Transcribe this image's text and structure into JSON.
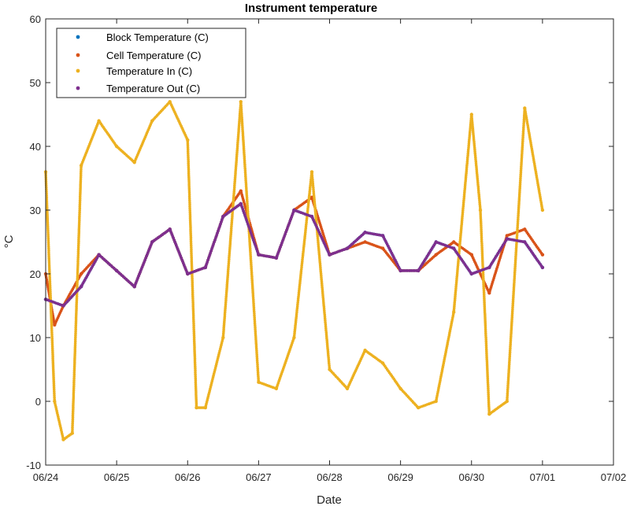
{
  "chart_data": {
    "type": "scatter",
    "title": "Instrument temperature",
    "xlabel": "Date",
    "ylabel": "°C",
    "xlim": [
      "06/24",
      "07/02"
    ],
    "ylim": [
      -10,
      60
    ],
    "x_tick_labels": [
      "06/24",
      "06/25",
      "06/26",
      "06/27",
      "06/28",
      "06/29",
      "06/30",
      "07/01",
      "07/02"
    ],
    "y_ticks": [
      -10,
      0,
      10,
      20,
      30,
      40,
      50,
      60
    ],
    "legend_position": "top-left",
    "grid": false,
    "series": [
      {
        "name": "Block Temperature (C)",
        "color": "#0072BD",
        "points": [
          [
            "06/24 00:00",
            16
          ],
          [
            "06/24 06:00",
            15
          ],
          [
            "06/24 12:00",
            18
          ],
          [
            "06/24 18:00",
            23
          ],
          [
            "06/25 00:00",
            20.5
          ],
          [
            "06/25 06:00",
            18
          ],
          [
            "06/25 12:00",
            25
          ],
          [
            "06/25 18:00",
            27
          ],
          [
            "06/26 00:00",
            20
          ],
          [
            "06/26 06:00",
            21
          ],
          [
            "06/26 12:00",
            29
          ],
          [
            "06/26 18:00",
            31
          ],
          [
            "06/27 00:00",
            23
          ],
          [
            "06/27 06:00",
            22.5
          ],
          [
            "06/27 12:00",
            30
          ],
          [
            "06/27 18:00",
            29
          ],
          [
            "06/28 00:00",
            23
          ],
          [
            "06/28 06:00",
            24
          ],
          [
            "06/28 12:00",
            26.5
          ],
          [
            "06/28 18:00",
            26
          ],
          [
            "06/29 00:00",
            20.5
          ],
          [
            "06/29 06:00",
            20.5
          ],
          [
            "06/29 12:00",
            25
          ],
          [
            "06/29 18:00",
            24
          ],
          [
            "06/30 00:00",
            20
          ],
          [
            "06/30 06:00",
            21
          ],
          [
            "06/30 12:00",
            25.5
          ],
          [
            "06/30 18:00",
            25
          ],
          [
            "07/01 00:00",
            21
          ]
        ]
      },
      {
        "name": "Cell Temperature (C)",
        "color": "#D95319",
        "points": [
          [
            "06/24 00:00",
            20
          ],
          [
            "06/24 03:00",
            12
          ],
          [
            "06/24 06:00",
            15
          ],
          [
            "06/24 12:00",
            20
          ],
          [
            "06/24 18:00",
            23
          ],
          [
            "06/25 00:00",
            20.5
          ],
          [
            "06/25 06:00",
            18
          ],
          [
            "06/25 12:00",
            25
          ],
          [
            "06/25 18:00",
            27
          ],
          [
            "06/26 00:00",
            20
          ],
          [
            "06/26 06:00",
            21
          ],
          [
            "06/26 12:00",
            29
          ],
          [
            "06/26 18:00",
            33
          ],
          [
            "06/27 00:00",
            23
          ],
          [
            "06/27 06:00",
            22.5
          ],
          [
            "06/27 12:00",
            30
          ],
          [
            "06/27 18:00",
            32
          ],
          [
            "06/28 00:00",
            23
          ],
          [
            "06/28 06:00",
            24
          ],
          [
            "06/28 12:00",
            25
          ],
          [
            "06/28 18:00",
            24
          ],
          [
            "06/29 00:00",
            20.5
          ],
          [
            "06/29 06:00",
            20.5
          ],
          [
            "06/29 12:00",
            23
          ],
          [
            "06/29 18:00",
            25
          ],
          [
            "06/30 00:00",
            23
          ],
          [
            "06/30 06:00",
            17
          ],
          [
            "06/30 12:00",
            26
          ],
          [
            "06/30 18:00",
            27
          ],
          [
            "07/01 00:00",
            23
          ]
        ]
      },
      {
        "name": "Temperature In (C)",
        "color": "#EDB120",
        "points": [
          [
            "06/24 00:00",
            36
          ],
          [
            "06/24 03:00",
            0
          ],
          [
            "06/24 06:00",
            -6
          ],
          [
            "06/24 09:00",
            -5
          ],
          [
            "06/24 12:00",
            37
          ],
          [
            "06/24 18:00",
            44
          ],
          [
            "06/25 00:00",
            40
          ],
          [
            "06/25 06:00",
            37.5
          ],
          [
            "06/25 12:00",
            44
          ],
          [
            "06/25 18:00",
            47
          ],
          [
            "06/26 00:00",
            41
          ],
          [
            "06/26 03:00",
            -1
          ],
          [
            "06/26 06:00",
            -1
          ],
          [
            "06/26 12:00",
            10
          ],
          [
            "06/26 18:00",
            47
          ],
          [
            "06/27 00:00",
            3
          ],
          [
            "06/27 06:00",
            2
          ],
          [
            "06/27 12:00",
            10
          ],
          [
            "06/27 18:00",
            36
          ],
          [
            "06/28 00:00",
            5
          ],
          [
            "06/28 06:00",
            2
          ],
          [
            "06/28 12:00",
            8
          ],
          [
            "06/28 18:00",
            6
          ],
          [
            "06/29 00:00",
            2
          ],
          [
            "06/29 06:00",
            -1
          ],
          [
            "06/29 12:00",
            0
          ],
          [
            "06/29 18:00",
            14
          ],
          [
            "06/30 00:00",
            45
          ],
          [
            "06/30 03:00",
            30
          ],
          [
            "06/30 06:00",
            -2
          ],
          [
            "06/30 12:00",
            0
          ],
          [
            "06/30 18:00",
            46
          ],
          [
            "07/01 00:00",
            30
          ]
        ]
      },
      {
        "name": "Temperature Out (C)",
        "color": "#7E2F8E",
        "points": [
          [
            "06/24 00:00",
            16
          ],
          [
            "06/24 06:00",
            15
          ],
          [
            "06/24 12:00",
            18
          ],
          [
            "06/24 18:00",
            23
          ],
          [
            "06/25 00:00",
            20.5
          ],
          [
            "06/25 06:00",
            18
          ],
          [
            "06/25 12:00",
            25
          ],
          [
            "06/25 18:00",
            27
          ],
          [
            "06/26 00:00",
            20
          ],
          [
            "06/26 06:00",
            21
          ],
          [
            "06/26 12:00",
            29
          ],
          [
            "06/26 18:00",
            31
          ],
          [
            "06/27 00:00",
            23
          ],
          [
            "06/27 06:00",
            22.5
          ],
          [
            "06/27 12:00",
            30
          ],
          [
            "06/27 18:00",
            29
          ],
          [
            "06/28 00:00",
            23
          ],
          [
            "06/28 06:00",
            24
          ],
          [
            "06/28 12:00",
            26.5
          ],
          [
            "06/28 18:00",
            26
          ],
          [
            "06/29 00:00",
            20.5
          ],
          [
            "06/29 06:00",
            20.5
          ],
          [
            "06/29 12:00",
            25
          ],
          [
            "06/29 18:00",
            24
          ],
          [
            "06/30 00:00",
            20
          ],
          [
            "06/30 06:00",
            21
          ],
          [
            "06/30 12:00",
            25.5
          ],
          [
            "06/30 18:00",
            25
          ],
          [
            "07/01 00:00",
            21
          ]
        ]
      }
    ]
  }
}
